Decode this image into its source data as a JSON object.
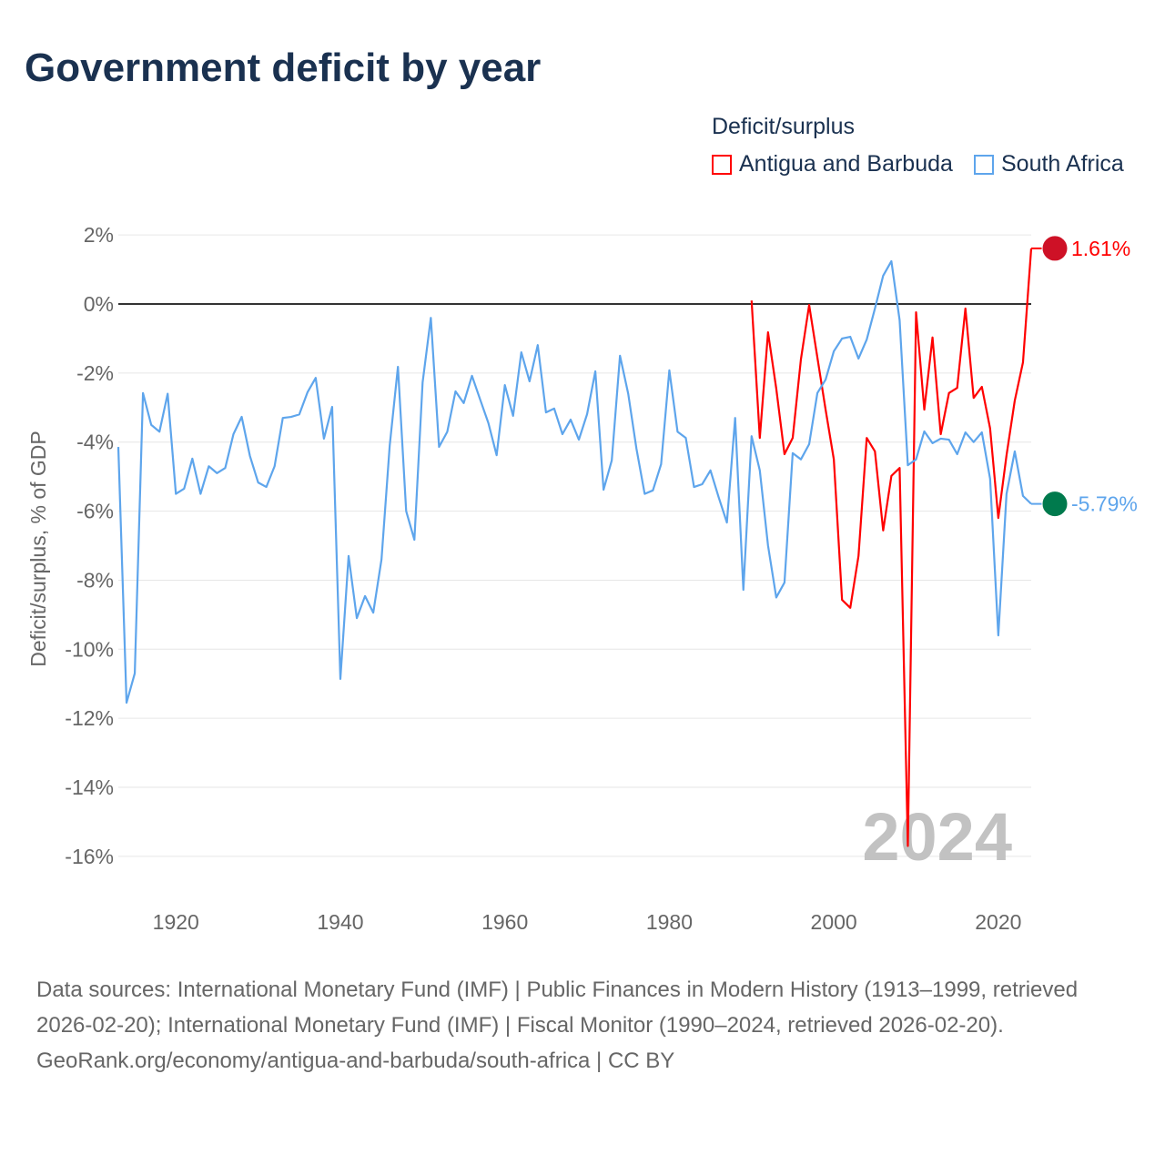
{
  "title": "Government deficit by year",
  "legend": {
    "title": "Deficit/surplus",
    "items": [
      {
        "label": "Antigua and Barbuda",
        "color": "#ff0000"
      },
      {
        "label": "South Africa",
        "color": "#5ea5ec"
      }
    ]
  },
  "footer": {
    "sources": "Data sources: International Monetary Fund (IMF) | Public Finances in Modern History (1913–1999, retrieved 2026-02-20); International Monetary Fund (IMF) | Fiscal Monitor (1990–2024, retrieved 2026-02-20).",
    "credit": "GeoRank.org/economy/antigua-and-barbuda/south-africa | CC BY"
  },
  "chart_data": {
    "type": "line",
    "title": "Government deficit by year",
    "ylabel": "Deficit/surplus, % of GDP",
    "xlabel": "",
    "ylim": [
      -16,
      2
    ],
    "xlim": [
      1913,
      2024
    ],
    "yticks": [
      2,
      0,
      -2,
      -4,
      -6,
      -8,
      -10,
      -12,
      -14,
      -16
    ],
    "ytick_labels": [
      "2%",
      "0%",
      "-2%",
      "-4%",
      "-6%",
      "-8%",
      "-10%",
      "-12%",
      "-14%",
      "-16%"
    ],
    "xticks": [
      1920,
      1940,
      1960,
      1980,
      2000,
      2020
    ],
    "xtick_labels": [
      "1920",
      "1940",
      "1960",
      "1980",
      "2000",
      "2020"
    ],
    "year_watermark": "2024",
    "series": [
      {
        "name": "Antigua and Barbuda",
        "color": "#ff0000",
        "start": 1990,
        "end_label": "1.61%",
        "values": [
          0.1,
          -3.88,
          -0.82,
          -2.45,
          -4.35,
          -3.88,
          -1.6,
          -0.03,
          -1.55,
          -3.06,
          -4.5,
          -8.57,
          -8.8,
          -7.3,
          -3.88,
          -4.27,
          -6.56,
          -4.98,
          -4.75,
          -15.7,
          -0.24,
          -3.06,
          -0.97,
          -3.77,
          -2.58,
          -2.43,
          -0.13,
          -2.72,
          -2.4,
          -3.6,
          -6.2,
          -4.38,
          -2.8,
          -1.69,
          1.61
        ]
      },
      {
        "name": "South Africa",
        "color": "#5ea5ec",
        "start": 1913,
        "end_label": "-5.79%",
        "values": [
          -4.14,
          -11.55,
          -10.7,
          -2.58,
          -3.5,
          -3.7,
          -2.6,
          -5.5,
          -5.35,
          -4.48,
          -5.5,
          -4.7,
          -4.9,
          -4.75,
          -3.77,
          -3.27,
          -4.4,
          -5.17,
          -5.3,
          -4.7,
          -3.3,
          -3.27,
          -3.2,
          -2.56,
          -2.14,
          -3.9,
          -2.98,
          -10.86,
          -7.3,
          -9.1,
          -8.46,
          -8.94,
          -7.4,
          -4.1,
          -1.82,
          -6.0,
          -6.83,
          -2.27,
          -0.4,
          -4.14,
          -3.7,
          -2.53,
          -2.87,
          -2.08,
          -2.77,
          -3.45,
          -4.38,
          -2.35,
          -3.24,
          -1.4,
          -2.24,
          -1.19,
          -3.14,
          -3.03,
          -3.77,
          -3.35,
          -3.93,
          -3.19,
          -1.95,
          -5.38,
          -4.53,
          -1.5,
          -2.6,
          -4.19,
          -5.5,
          -5.4,
          -4.64,
          -1.92,
          -3.7,
          -3.88,
          -5.3,
          -5.22,
          -4.82,
          -5.6,
          -6.33,
          -3.3,
          -8.28,
          -3.83,
          -4.82,
          -7.0,
          -8.5,
          -8.07,
          -4.32,
          -4.5,
          -4.06,
          -2.58,
          -2.19,
          -1.37,
          -1.0,
          -0.95,
          -1.58,
          -1.03,
          -0.13,
          0.82,
          1.24,
          -0.47,
          -4.67,
          -4.5,
          -3.69,
          -4.03,
          -3.9,
          -3.93,
          -4.35,
          -3.72,
          -4.0,
          -3.72,
          -5.06,
          -9.6,
          -5.5,
          -4.27,
          -5.56,
          -5.79
        ]
      }
    ]
  }
}
